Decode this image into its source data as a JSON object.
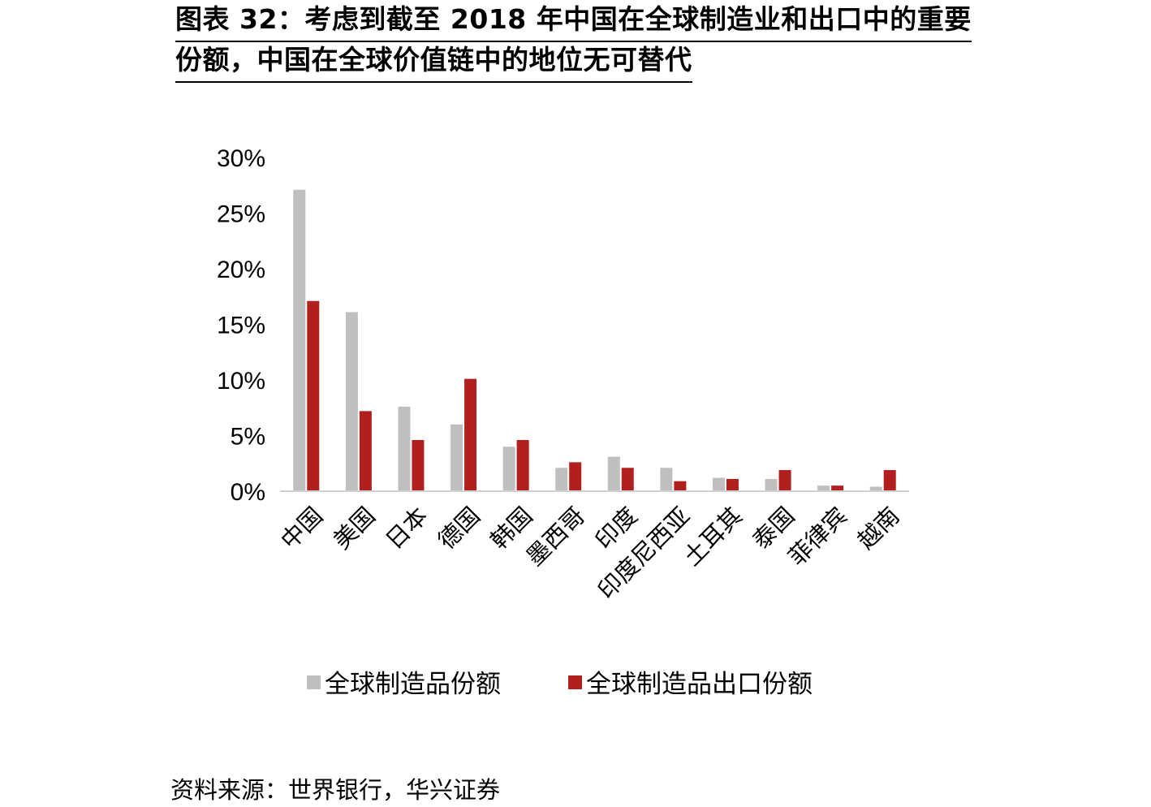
{
  "title": {
    "line1": "图表 32：考虑到截至 2018 年中国在全球制造业和出口中的重要",
    "line2": "份额，中国在全球价值链中的地位无可替代"
  },
  "source": "资料来源：世界银行，华兴证券",
  "colors": {
    "manufacturing": "#bfbfbf",
    "export": "#b1201e",
    "axis": "#d0d0d0"
  },
  "chart_data": {
    "type": "bar",
    "categories": [
      "中国",
      "美国",
      "日本",
      "德国",
      "韩国",
      "墨西哥",
      "印度",
      "印度尼西亚",
      "土耳其",
      "泰国",
      "菲律宾",
      "越南"
    ],
    "series": [
      {
        "name": "全球制造品份额",
        "values": [
          27.1,
          16.1,
          7.6,
          6.0,
          4.0,
          2.1,
          3.1,
          2.1,
          1.2,
          1.1,
          0.5,
          0.4
        ]
      },
      {
        "name": "全球制造品出口份额",
        "values": [
          17.1,
          7.2,
          4.6,
          10.1,
          4.6,
          2.6,
          2.1,
          0.9,
          1.1,
          1.9,
          0.5,
          1.9
        ]
      }
    ],
    "y_ticks": [
      "0%",
      "5%",
      "10%",
      "15%",
      "20%",
      "25%",
      "30%"
    ],
    "ylim": [
      0,
      30
    ],
    "legend_position": "bottom",
    "grid": false
  }
}
